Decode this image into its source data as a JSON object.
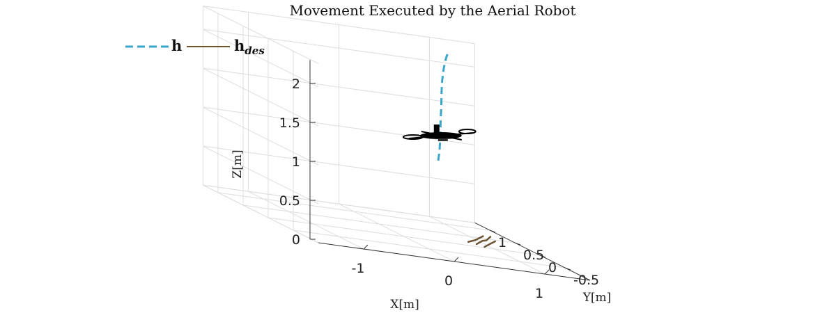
{
  "chart_data": {
    "type": "line",
    "title": "Movement Executed by the Aerial Robot",
    "xlabel": "X[m]",
    "ylabel": "Y[m]",
    "zlabel": "Z[m]",
    "x_ticks": [
      "-1",
      "0",
      "1"
    ],
    "y_ticks": [
      "-0.5",
      "0",
      "0.5",
      "1"
    ],
    "z_ticks": [
      "0",
      "0.5",
      "1",
      "1.5",
      "2"
    ],
    "xlim": [
      -1.5,
      1.5
    ],
    "ylim": [
      -1,
      1.3
    ],
    "zlim": [
      0,
      2.3
    ],
    "grid": true,
    "legend_position": "top-left",
    "colors": {
      "h": "#3aa6cc",
      "h_des": "#6b5230",
      "robot": "#000000"
    },
    "series": [
      {
        "name": "h",
        "style": "dashed",
        "x": [
          0.46,
          0.48,
          0.5,
          0.52,
          0.55,
          0.58,
          0.62,
          0.67,
          0.73,
          0.8,
          0.88
        ],
        "y": [
          0.15,
          0.16,
          0.18,
          0.21,
          0.25,
          0.3,
          0.36,
          0.43,
          0.51,
          0.6,
          0.7
        ],
        "z": [
          1.0,
          1.12,
          1.3,
          1.5,
          1.7,
          1.85,
          1.98,
          2.08,
          2.17,
          2.24,
          2.3
        ]
      },
      {
        "name": "h",
        "name_subscript": "des",
        "style": "solid",
        "x": [
          0.72,
          0.85,
          0.95,
          1.05,
          0.8,
          0.92,
          1.02,
          1.12,
          0.86,
          1.0,
          1.1
        ],
        "y": [
          0.02,
          0.12,
          0.22,
          0.32,
          0.0,
          0.1,
          0.2,
          0.3,
          -0.05,
          0.07,
          0.17
        ],
        "z": [
          0.04,
          0.05,
          0.06,
          0.07,
          0.03,
          0.06,
          0.05,
          0.08,
          0.02,
          0.05,
          0.06
        ]
      }
    ]
  }
}
